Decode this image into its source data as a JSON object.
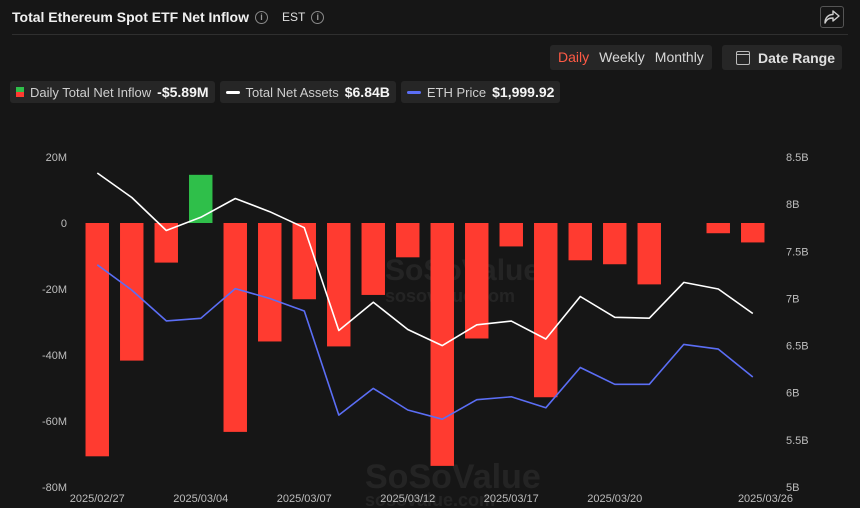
{
  "header": {
    "title": "Total Ethereum Spot ETF Net Inflow",
    "timezone": "EST",
    "info_icon": "i"
  },
  "controls": {
    "ranges": [
      "Daily",
      "Weekly",
      "Monthly"
    ],
    "active_range": "Daily",
    "date_range_label": "Date Range"
  },
  "legend": [
    {
      "label": "Daily Total Net Inflow",
      "value": "-$5.89M",
      "icon": "bar-swatch",
      "color": "#2fbf4a"
    },
    {
      "label": "Total Net Assets",
      "value": "$6.84B",
      "icon": "line-swatch",
      "color": "#ffffff"
    },
    {
      "label": "ETH Price",
      "value": "$1,999.92",
      "icon": "line-swatch",
      "color": "#5b6ef5"
    }
  ],
  "watermark": {
    "brand": "SoSoValue",
    "site": "sosovalue.com"
  },
  "chart_data": {
    "type": "bar",
    "dates": [
      "2025/02/27",
      "2025/02/28",
      "2025/03/03",
      "2025/03/04",
      "2025/03/05",
      "2025/03/06",
      "2025/03/07",
      "2025/03/10",
      "2025/03/11",
      "2025/03/12",
      "2025/03/13",
      "2025/03/14",
      "2025/03/17",
      "2025/03/18",
      "2025/03/19",
      "2025/03/20",
      "2025/03/21",
      "2025/03/24",
      "2025/03/25",
      "2025/03/26"
    ],
    "x_tick_labels": [
      "2025/02/27",
      "2025/03/04",
      "2025/03/07",
      "2025/03/12",
      "2025/03/17",
      "2025/03/20",
      "2025/03/26"
    ],
    "x_tick_dates": [
      "2025/02/27",
      "2025/03/04",
      "2025/03/07",
      "2025/03/12",
      "2025/03/17",
      "2025/03/20",
      "2025/03/26"
    ],
    "series": [
      {
        "name": "Daily Total Net Inflow",
        "axis": "left",
        "values": [
          -70.7,
          -41.7,
          -12.0,
          14.6,
          -63.3,
          -35.9,
          -23.1,
          -37.4,
          -21.8,
          -10.4,
          -73.6,
          -35.0,
          -7.1,
          -52.8,
          -11.3,
          -12.5,
          -18.6,
          0,
          -3.1,
          -5.89
        ]
      },
      {
        "name": "Total Net Assets",
        "axis": "right",
        "values": [
          8.33,
          8.07,
          7.72,
          7.86,
          8.06,
          7.92,
          7.75,
          6.66,
          6.96,
          6.67,
          6.5,
          6.72,
          6.76,
          6.57,
          7.02,
          6.8,
          6.79,
          7.17,
          7.1,
          6.84
        ]
      },
      {
        "name": "ETH Price",
        "axis": "hidden",
        "values": [
          2306,
          2237,
          2153,
          2160,
          2241,
          2214,
          2180,
          1896,
          1969,
          1910,
          1885,
          1938,
          1946,
          1916,
          2026,
          1980,
          1980,
          2089,
          2076,
          2000
        ]
      }
    ],
    "left_axis": {
      "ylim": [
        -80,
        20
      ],
      "ticks": [
        20,
        0,
        -20,
        -40,
        -60,
        -80
      ],
      "tick_labels": [
        "20M",
        "0",
        "-20M",
        "-40M",
        "-60M",
        "-80M"
      ]
    },
    "right_axis": {
      "ylim": [
        5.0,
        8.5
      ],
      "ticks": [
        8.5,
        8.0,
        7.5,
        7.0,
        6.5,
        6.0,
        5.5,
        5.0
      ],
      "tick_labels": [
        "8.5B",
        "8B",
        "7.5B",
        "7B",
        "6.5B",
        "6B",
        "5.5B",
        "5B"
      ]
    },
    "hidden_axis": {
      "ylim": [
        1700,
        2600
      ]
    },
    "colors": {
      "positive": "#2fbf4a",
      "negative": "#ff3b30",
      "assets": "#ffffff",
      "price": "#5b6ef5"
    },
    "grid": false
  }
}
